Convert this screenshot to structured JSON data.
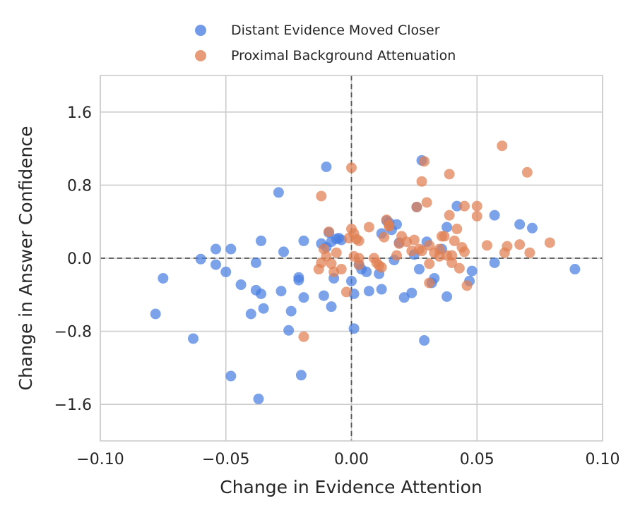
{
  "chart_data": {
    "type": "scatter",
    "xlabel": "Change in Evidence Attention",
    "ylabel": "Change in Answer Confidence",
    "xlim": [
      -0.1,
      0.1
    ],
    "ylim": [
      -2.0,
      2.0
    ],
    "x_ticks": [
      -0.1,
      -0.05,
      0.0,
      0.05,
      0.1
    ],
    "x_tick_labels": [
      "−0.10",
      "−0.05",
      "0.00",
      "0.05",
      "0.10"
    ],
    "y_ticks": [
      1.6,
      0.8,
      0.0,
      -0.8,
      -1.6
    ],
    "y_tick_labels": [
      "1.6",
      "0.8",
      "0.0",
      "−0.8",
      "−1.6"
    ],
    "grid": true,
    "reference_lines": {
      "x": 0,
      "y": 0,
      "style": "dashed"
    },
    "legend_position": "top-center, outside plot",
    "series": [
      {
        "name": "Distant Evidence Moved Closer",
        "color": "#4a7ee0",
        "points": [
          [
            -0.078,
            -0.61
          ],
          [
            -0.075,
            -0.22
          ],
          [
            -0.063,
            -0.88
          ],
          [
            -0.06,
            -0.01
          ],
          [
            -0.054,
            0.1
          ],
          [
            -0.054,
            -0.07
          ],
          [
            -0.05,
            -0.15
          ],
          [
            -0.048,
            0.1
          ],
          [
            -0.048,
            -1.29
          ],
          [
            -0.044,
            -0.29
          ],
          [
            -0.04,
            -0.61
          ],
          [
            -0.038,
            -0.05
          ],
          [
            -0.038,
            -0.35
          ],
          [
            -0.037,
            -1.54
          ],
          [
            -0.036,
            -0.39
          ],
          [
            -0.036,
            0.19
          ],
          [
            -0.035,
            -0.55
          ],
          [
            -0.029,
            0.72
          ],
          [
            -0.028,
            -0.36
          ],
          [
            -0.027,
            0.07
          ],
          [
            -0.025,
            -0.79
          ],
          [
            -0.024,
            -0.58
          ],
          [
            -0.021,
            -0.21
          ],
          [
            -0.021,
            -0.24
          ],
          [
            -0.02,
            -1.28
          ],
          [
            -0.019,
            0.19
          ],
          [
            -0.019,
            -0.43
          ],
          [
            -0.012,
            0.16
          ],
          [
            -0.011,
            -0.41
          ],
          [
            -0.01,
            1.0
          ],
          [
            -0.01,
            0.12
          ],
          [
            -0.009,
            0.28
          ],
          [
            -0.008,
            0.18
          ],
          [
            -0.008,
            -0.53
          ],
          [
            -0.007,
            -0.22
          ],
          [
            -0.006,
            0.21
          ],
          [
            -0.005,
            0.22
          ],
          [
            -0.004,
            0.2
          ],
          [
            0.0,
            -0.25
          ],
          [
            0.001,
            -0.39
          ],
          [
            0.001,
            -0.77
          ],
          [
            0.003,
            -0.07
          ],
          [
            0.004,
            -0.12
          ],
          [
            0.006,
            -0.15
          ],
          [
            0.007,
            -0.36
          ],
          [
            0.011,
            -0.17
          ],
          [
            0.012,
            -0.34
          ],
          [
            0.012,
            0.27
          ],
          [
            0.014,
            0.41
          ],
          [
            0.015,
            0.39
          ],
          [
            0.016,
            0.31
          ],
          [
            0.017,
            -0.02
          ],
          [
            0.018,
            0.37
          ],
          [
            0.019,
            0.17
          ],
          [
            0.021,
            -0.43
          ],
          [
            0.024,
            -0.38
          ],
          [
            0.025,
            0.04
          ],
          [
            0.026,
            0.56
          ],
          [
            0.027,
            -0.12
          ],
          [
            0.028,
            1.07
          ],
          [
            0.029,
            -0.9
          ],
          [
            0.03,
            0.18
          ],
          [
            0.032,
            -0.27
          ],
          [
            0.033,
            -0.22
          ],
          [
            0.036,
            0.1
          ],
          [
            0.038,
            -0.42
          ],
          [
            0.038,
            0.34
          ],
          [
            0.042,
            0.57
          ],
          [
            0.047,
            -0.25
          ],
          [
            0.048,
            -0.14
          ],
          [
            0.057,
            -0.05
          ],
          [
            0.057,
            0.47
          ],
          [
            0.067,
            0.37
          ],
          [
            0.072,
            0.33
          ],
          [
            0.089,
            -0.12
          ]
        ]
      },
      {
        "name": "Proximal Background Attenuation",
        "color": "#e07f52",
        "points": [
          [
            -0.019,
            -0.86
          ],
          [
            -0.013,
            -0.12
          ],
          [
            -0.012,
            0.68
          ],
          [
            -0.012,
            -0.05
          ],
          [
            -0.011,
            0.1
          ],
          [
            -0.01,
            0.02
          ],
          [
            -0.009,
            0.29
          ],
          [
            -0.008,
            -0.06
          ],
          [
            -0.007,
            -0.15
          ],
          [
            -0.004,
            -0.12
          ],
          [
            -0.002,
            -0.37
          ],
          [
            -0.001,
            0.22
          ],
          [
            0.0,
            0.99
          ],
          [
            0.0,
            0.32
          ],
          [
            0.001,
            0.02
          ],
          [
            0.001,
            0.27
          ],
          [
            0.002,
            0.21
          ],
          [
            0.003,
            0.19
          ],
          [
            0.003,
            -0.07
          ],
          [
            0.007,
            0.34
          ],
          [
            0.009,
            0.0
          ],
          [
            0.01,
            -0.05
          ],
          [
            0.011,
            -0.08
          ],
          [
            0.012,
            -0.1
          ],
          [
            0.013,
            0.23
          ],
          [
            0.014,
            0.42
          ],
          [
            0.015,
            0.36
          ],
          [
            0.018,
            0.03
          ],
          [
            0.019,
            0.16
          ],
          [
            0.02,
            0.24
          ],
          [
            0.022,
            0.18
          ],
          [
            0.024,
            0.08
          ],
          [
            0.025,
            0.2
          ],
          [
            0.026,
            0.56
          ],
          [
            0.027,
            0.1
          ],
          [
            0.028,
            0.08
          ],
          [
            0.028,
            0.84
          ],
          [
            0.029,
            1.06
          ],
          [
            0.03,
            0.61
          ],
          [
            0.031,
            -0.06
          ],
          [
            0.031,
            0.14
          ],
          [
            0.033,
            0.06
          ],
          [
            0.035,
            0.02
          ],
          [
            0.035,
            0.1
          ],
          [
            0.036,
            0.24
          ],
          [
            0.037,
            0.24
          ],
          [
            0.038,
            0.03
          ],
          [
            0.039,
            0.92
          ],
          [
            0.039,
            0.47
          ],
          [
            0.04,
            0.03
          ],
          [
            0.041,
            0.19
          ],
          [
            0.042,
            0.32
          ],
          [
            0.043,
            -0.11
          ],
          [
            0.044,
            0.12
          ],
          [
            0.045,
            0.57
          ],
          [
            0.045,
            0.07
          ],
          [
            0.046,
            -0.3
          ],
          [
            0.05,
            0.46
          ],
          [
            0.05,
            0.57
          ],
          [
            0.054,
            0.14
          ],
          [
            0.06,
            1.23
          ],
          [
            0.061,
            0.06
          ],
          [
            0.062,
            0.13
          ],
          [
            0.067,
            0.15
          ],
          [
            0.07,
            0.94
          ],
          [
            0.071,
            0.06
          ],
          [
            0.079,
            0.17
          ],
          [
            0.031,
            -0.27
          ],
          [
            0.015,
            0.35
          ],
          [
            -0.006,
            0.06
          ],
          [
            0.04,
            -0.05
          ],
          [
            0.003,
            0.0
          ]
        ]
      }
    ]
  }
}
